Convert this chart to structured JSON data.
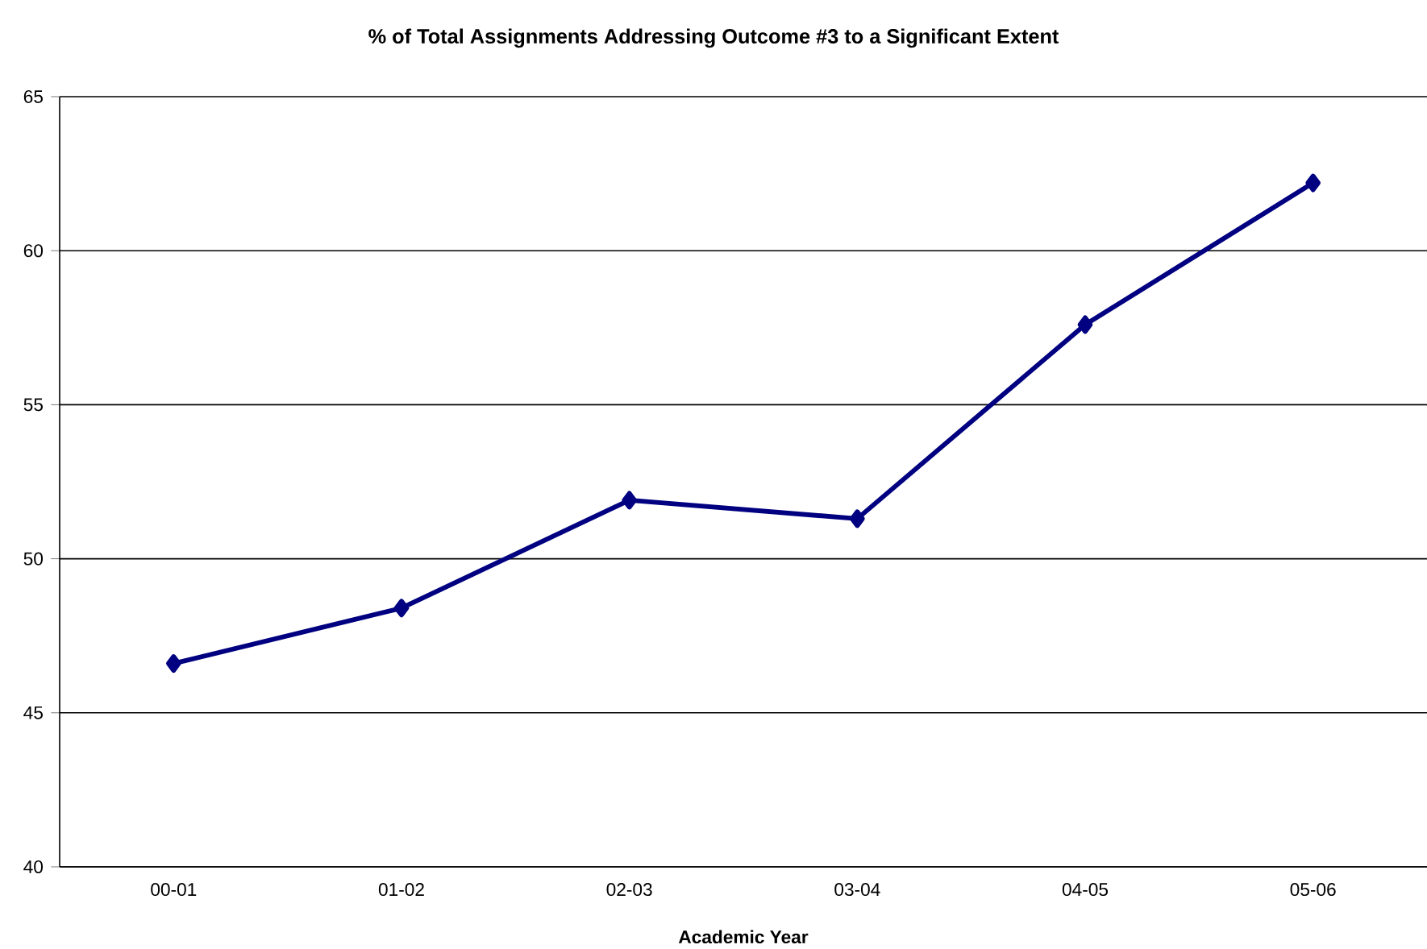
{
  "chart_data": {
    "type": "line",
    "title": "% of Total Assignments Addressing Outcome #3 to a Significant Extent",
    "xlabel": "Academic Year",
    "categories": [
      "00-01",
      "01-02",
      "02-03",
      "03-04",
      "04-05",
      "05-06"
    ],
    "series": [
      {
        "color": "#000080",
        "values": [
          46.6,
          48.4,
          51.9,
          51.3,
          57.6,
          62.2
        ]
      }
    ],
    "ylim": [
      40,
      65
    ],
    "yticks": [
      40,
      45,
      50,
      55,
      60,
      65
    ],
    "grid": "y",
    "marker": "diamond",
    "line_style": "solid"
  }
}
